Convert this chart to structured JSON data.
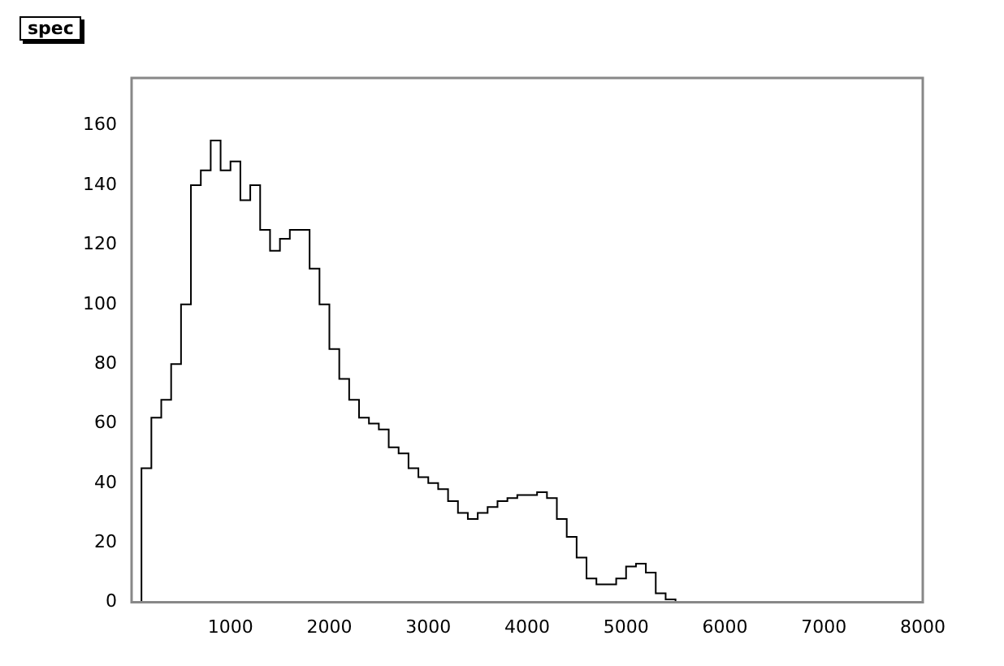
{
  "chart_data": {
    "type": "histogram",
    "title": "spec",
    "bins": [
      0,
      100,
      200,
      300,
      400,
      500,
      600,
      700,
      800,
      900,
      1000,
      1100,
      1200,
      1300,
      1400,
      1500,
      1600,
      1700,
      1800,
      1900,
      2000,
      2100,
      2200,
      2300,
      2400,
      2500,
      2600,
      2700,
      2800,
      2900,
      3000,
      3100,
      3200,
      3300,
      3400,
      3500,
      3600,
      3700,
      3800,
      3900,
      4000,
      4100,
      4200,
      4300,
      4400,
      4500,
      4600,
      4700,
      4800,
      4900,
      5000,
      5100,
      5200,
      5300,
      5400,
      5500,
      5600,
      5700,
      5800,
      5900,
      6000
    ],
    "values": [
      0,
      45,
      62,
      68,
      80,
      100,
      140,
      145,
      155,
      145,
      148,
      135,
      140,
      125,
      118,
      122,
      125,
      125,
      112,
      100,
      85,
      75,
      68,
      62,
      60,
      58,
      52,
      50,
      45,
      42,
      40,
      38,
      34,
      30,
      28,
      30,
      32,
      34,
      35,
      36,
      36,
      37,
      35,
      28,
      22,
      15,
      8,
      6,
      6,
      8,
      12,
      13,
      10,
      3,
      1,
      0,
      0,
      0,
      0,
      0
    ],
    "color": "#000000",
    "xlim": [
      0,
      8000
    ],
    "xticks": [
      1000,
      2000,
      3000,
      4000,
      5000,
      6000,
      7000,
      8000
    ],
    "ylim": [
      0,
      176
    ],
    "yticks": [
      0,
      20,
      40,
      60,
      80,
      100,
      120,
      140,
      160
    ],
    "grid": false,
    "legend": false
  }
}
